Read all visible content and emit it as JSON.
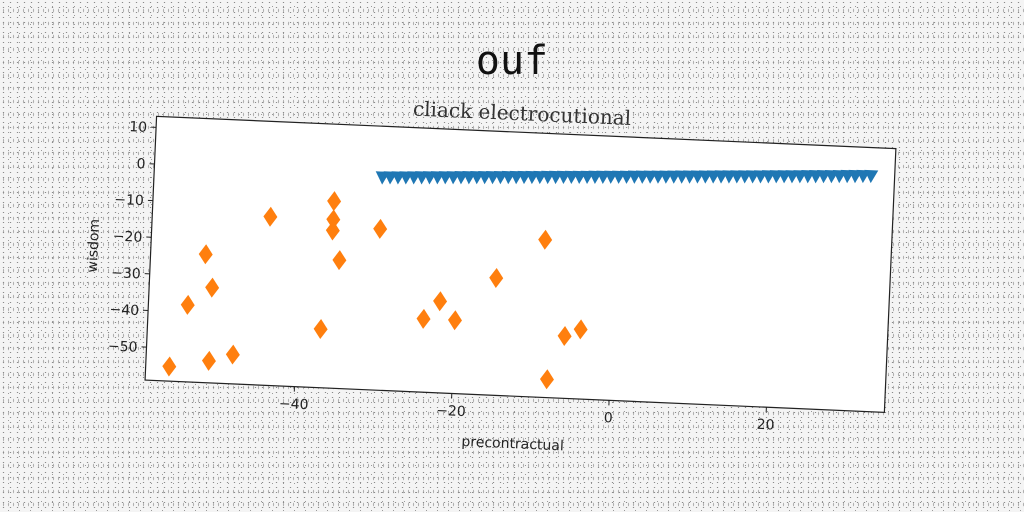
{
  "figure_title": "ouf",
  "chart_data": {
    "type": "scatter",
    "title": "cliack electrocutional",
    "xlabel": "precontractual",
    "ylabel": "wisdom",
    "xlim": [
      -59,
      35
    ],
    "ylim": [
      -59,
      13
    ],
    "xticks": [
      -40,
      -20,
      0,
      20
    ],
    "yticks": [
      10,
      0,
      -10,
      -20,
      -30,
      -40,
      -50
    ],
    "grid": false,
    "series": [
      {
        "marker": "triangle-down",
        "color": "#1f77b4",
        "x": [
          -30,
          -29,
          -28,
          -27,
          -26,
          -25,
          -24,
          -23,
          -22,
          -21,
          -20,
          -19,
          -18,
          -17,
          -16,
          -15,
          -14,
          -13,
          -12,
          -11,
          -10,
          -9,
          -8,
          -7,
          -6,
          -5,
          -4,
          -3,
          -2,
          -1,
          0,
          1,
          2,
          3,
          4,
          5,
          6,
          7,
          8,
          9,
          10,
          11,
          12,
          13,
          14,
          15,
          16,
          17,
          18,
          19,
          20,
          21,
          22,
          23,
          24,
          25,
          26,
          27,
          28,
          29,
          30,
          31,
          32
        ],
        "y": [
          -1,
          -0.9,
          -0.8,
          -0.7,
          -0.6,
          -0.5,
          -0.4,
          -0.3,
          -0.2,
          -0.1,
          0,
          0.1,
          0.2,
          0.3,
          0.4,
          0.5,
          0.6,
          0.7,
          0.8,
          0.9,
          1,
          1.1,
          1.2,
          1.3,
          1.4,
          1.5,
          1.6,
          1.7,
          1.8,
          1.9,
          2,
          2.1,
          2.2,
          2.3,
          2.4,
          2.5,
          2.6,
          2.7,
          2.8,
          2.9,
          3,
          3.1,
          3.2,
          3.3,
          3.4,
          3.5,
          3.6,
          3.7,
          3.8,
          3.9,
          4,
          4.1,
          4.2,
          4.3,
          4.4,
          4.5,
          4.6,
          4.7,
          4.8,
          4.9,
          5,
          5.1,
          5.2
        ]
      },
      {
        "marker": "diamond",
        "color": "#ff7f0e",
        "x": [
          -56,
          -54,
          -52,
          -51,
          -51,
          -48,
          -44,
          -37,
          -36,
          -36,
          -36,
          -35,
          -30,
          -24,
          -22,
          -20,
          -15,
          -9,
          -8,
          -6,
          -4
        ],
        "y": [
          -55,
          -38,
          -24,
          -33,
          -53,
          -51,
          -13,
          -43,
          -8,
          -13,
          -16,
          -24,
          -15,
          -39,
          -34,
          -39,
          -27,
          -16,
          -54,
          -42,
          -40
        ]
      }
    ]
  }
}
